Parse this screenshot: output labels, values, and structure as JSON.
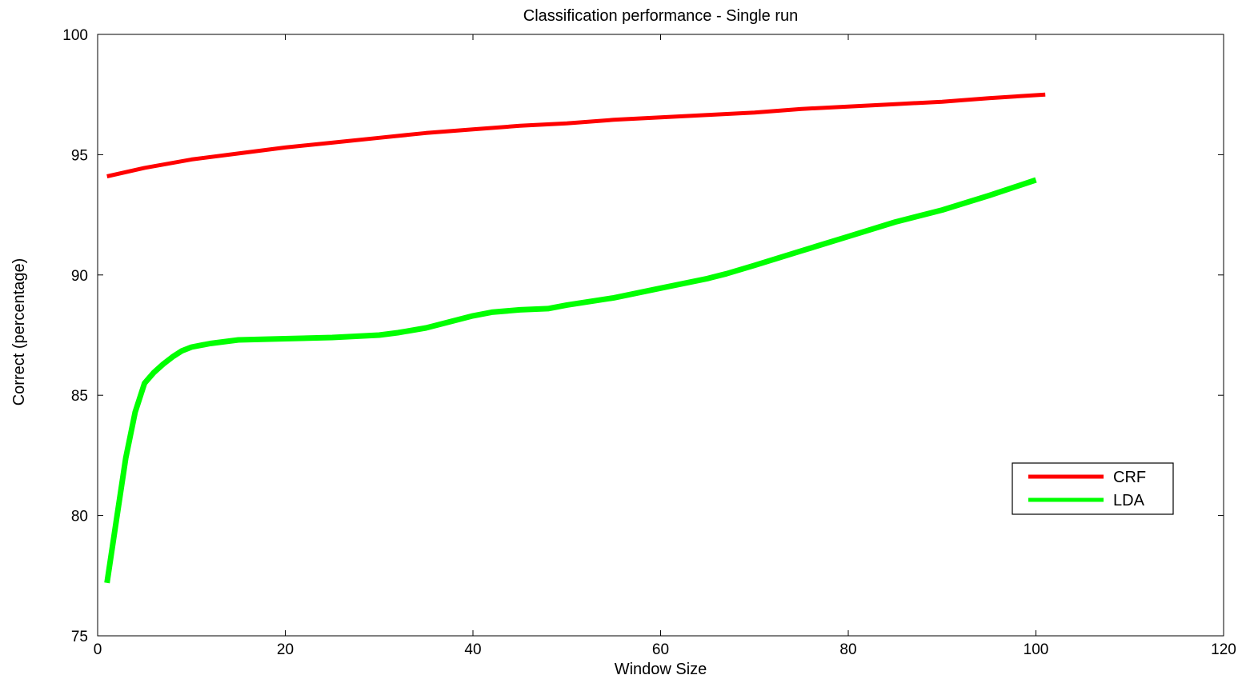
{
  "chart_data": {
    "type": "line",
    "title": "Classification performance - Single run",
    "xlabel": "Window Size",
    "ylabel": "Correct (percentage)",
    "xlim": [
      0,
      120
    ],
    "ylim": [
      75,
      100
    ],
    "xticks": [
      0,
      20,
      40,
      60,
      80,
      100,
      120
    ],
    "yticks": [
      75,
      80,
      85,
      90,
      95,
      100
    ],
    "grid": false,
    "legend_position": "right",
    "series": [
      {
        "name": "CRF",
        "color": "#ff0000",
        "x": [
          1,
          5,
          10,
          15,
          20,
          25,
          30,
          35,
          40,
          45,
          50,
          55,
          60,
          65,
          70,
          75,
          80,
          85,
          90,
          95,
          101
        ],
        "y": [
          94.1,
          94.45,
          94.8,
          95.05,
          95.3,
          95.5,
          95.7,
          95.9,
          96.05,
          96.2,
          96.3,
          96.45,
          96.55,
          96.65,
          96.75,
          96.9,
          97.0,
          97.1,
          97.2,
          97.35,
          97.5
        ]
      },
      {
        "name": "LDA",
        "color": "#00ff00",
        "x": [
          1,
          2,
          3,
          4,
          5,
          6,
          7,
          8,
          9,
          10,
          12,
          15,
          20,
          25,
          30,
          32,
          35,
          40,
          42,
          45,
          48,
          50,
          55,
          60,
          65,
          67,
          70,
          75,
          80,
          85,
          90,
          95,
          100
        ],
        "y": [
          77.2,
          79.8,
          82.4,
          84.3,
          85.5,
          85.95,
          86.3,
          86.6,
          86.85,
          87.0,
          87.15,
          87.3,
          87.35,
          87.4,
          87.5,
          87.6,
          87.8,
          88.3,
          88.45,
          88.55,
          88.6,
          88.75,
          89.05,
          89.45,
          89.85,
          90.05,
          90.4,
          91.0,
          91.6,
          92.2,
          92.7,
          93.3,
          93.95
        ]
      }
    ]
  }
}
